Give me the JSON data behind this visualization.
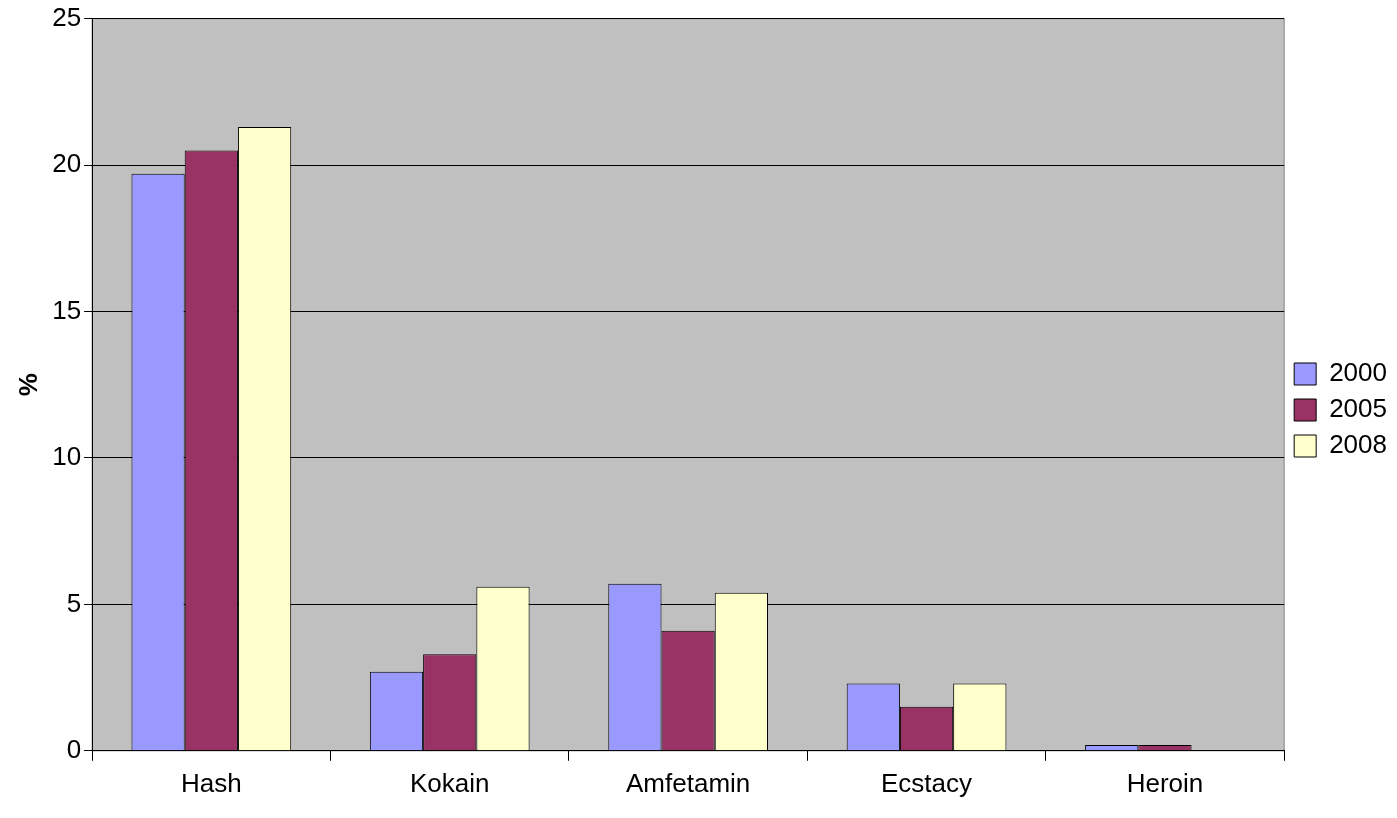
{
  "chart_data": {
    "type": "bar",
    "ylabel": "%",
    "categories": [
      "Hash",
      "Kokain",
      "Amfetamin",
      "Ecstacy",
      "Heroin"
    ],
    "series": [
      {
        "name": "2000",
        "color": "#9999ff",
        "values": [
          19.7,
          2.7,
          5.7,
          2.3,
          0.2
        ]
      },
      {
        "name": "2005",
        "color": "#993366",
        "values": [
          20.5,
          3.3,
          4.1,
          1.5,
          0.2
        ]
      },
      {
        "name": "2008",
        "color": "#ffffcc",
        "values": [
          21.3,
          5.6,
          5.4,
          2.3,
          0
        ]
      }
    ],
    "ylim": [
      0,
      25
    ],
    "yticks": [
      0,
      5,
      10,
      15,
      20,
      25
    ],
    "grid": "y",
    "legend": "right"
  }
}
